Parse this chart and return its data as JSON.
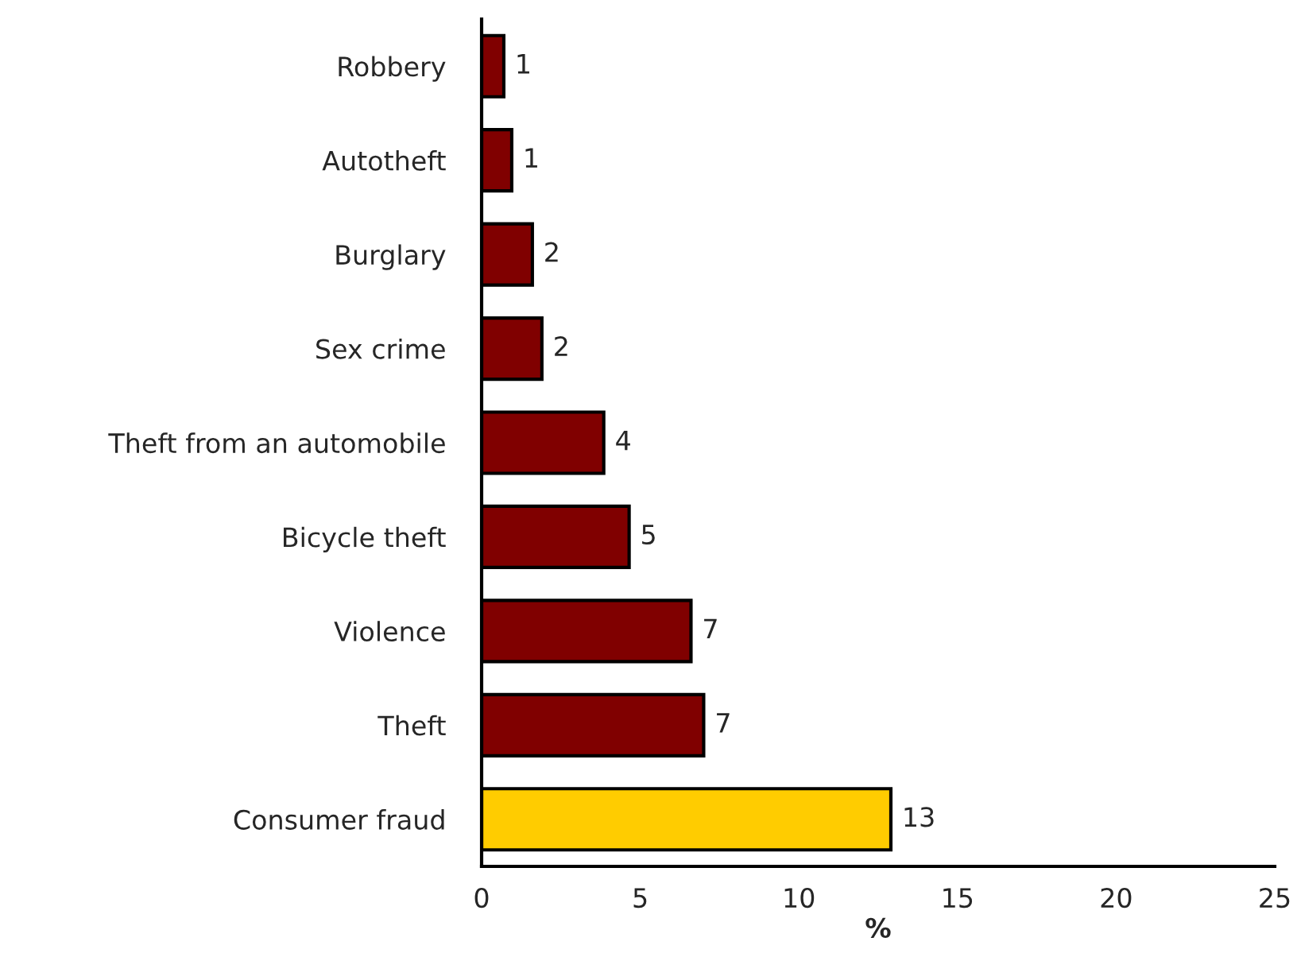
{
  "chart_data": {
    "type": "bar",
    "orientation": "horizontal",
    "xlabel": "%",
    "categories": [
      "Robbery",
      "Autotheft",
      "Burglary",
      "Sex crime",
      "Theft from an automobile",
      "Bicycle theft",
      "Violence",
      "Theft",
      "Consumer fraud"
    ],
    "values": [
      0.7,
      0.95,
      1.6,
      1.9,
      3.85,
      4.65,
      6.6,
      7.0,
      12.9
    ],
    "value_labels": [
      "1",
      "1",
      "2",
      "2",
      "4",
      "5",
      "7",
      "7",
      "13"
    ],
    "colors": [
      "#800000",
      "#800000",
      "#800000",
      "#800000",
      "#800000",
      "#800000",
      "#800000",
      "#800000",
      "#ffcc00"
    ],
    "xlim": [
      0,
      25
    ],
    "xticks": [
      0,
      5,
      10,
      15,
      20,
      25
    ],
    "grid": false,
    "legend": false
  }
}
